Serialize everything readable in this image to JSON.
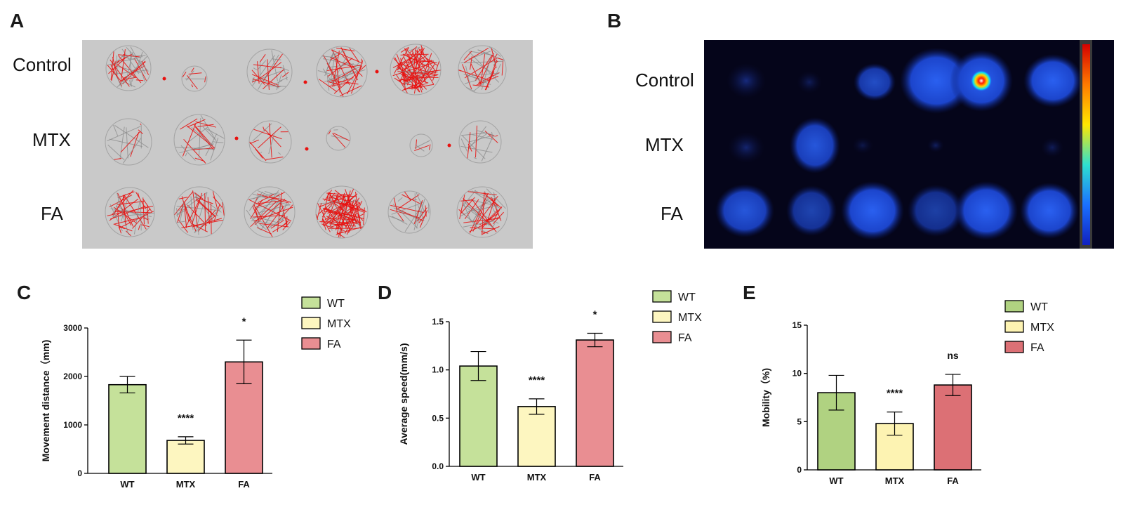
{
  "panels": {
    "A": {
      "letter": "A",
      "rows": [
        "Control",
        "MTX",
        "FA"
      ],
      "colors": {
        "background": "#c9c9c9",
        "track_gray": "#8a8a8a",
        "track_red": "#e8110f"
      }
    },
    "B": {
      "letter": "B",
      "rows": [
        "Control",
        "MTX",
        "FA"
      ],
      "colors": {
        "background": "#05051a",
        "blob": "#1f4fd6",
        "hotspot": "#ff1a00"
      }
    }
  },
  "chart_data": [
    {
      "panel": "C",
      "type": "bar",
      "categories": [
        "WT",
        "MTX",
        "FA"
      ],
      "values": [
        1830,
        680,
        2300
      ],
      "errors": [
        170,
        75,
        450
      ],
      "significance": [
        "",
        "****",
        "*"
      ],
      "ylabel": "Movement distance（mm)",
      "ylim": [
        0,
        3000
      ],
      "yticks": [
        0,
        1000,
        2000,
        3000
      ],
      "legend": [
        "WT",
        "MTX",
        "FA"
      ],
      "legend_position": "top-right",
      "colors": [
        "#c5e19a",
        "#fdf6c0",
        "#e98e92"
      ]
    },
    {
      "panel": "D",
      "type": "bar",
      "categories": [
        "WT",
        "MTX",
        "FA"
      ],
      "values": [
        1.04,
        0.62,
        1.31
      ],
      "errors": [
        0.15,
        0.08,
        0.07
      ],
      "significance": [
        "",
        "****",
        "*"
      ],
      "ylabel": "Average speed(mm/s)",
      "ylim": [
        0,
        1.5
      ],
      "yticks": [
        "0.0",
        "0.5",
        "1.0",
        "1.5"
      ],
      "legend": [
        "WT",
        "MTX",
        "FA"
      ],
      "legend_position": "top-right",
      "colors": [
        "#c5e19a",
        "#fdf6c0",
        "#e98e92"
      ]
    },
    {
      "panel": "E",
      "type": "bar",
      "categories": [
        "WT",
        "MTX",
        "FA"
      ],
      "values": [
        8.0,
        4.8,
        8.8
      ],
      "errors": [
        1.8,
        1.2,
        1.1
      ],
      "significance": [
        "",
        "****",
        "ns"
      ],
      "ylabel": "Mobility（%)",
      "ylim": [
        0,
        15
      ],
      "yticks": [
        0,
        5,
        10,
        15
      ],
      "legend": [
        "WT",
        "MTX",
        "FA"
      ],
      "legend_position": "top-right",
      "colors": [
        "#b0d281",
        "#fdf3b2",
        "#dc7075"
      ]
    }
  ]
}
